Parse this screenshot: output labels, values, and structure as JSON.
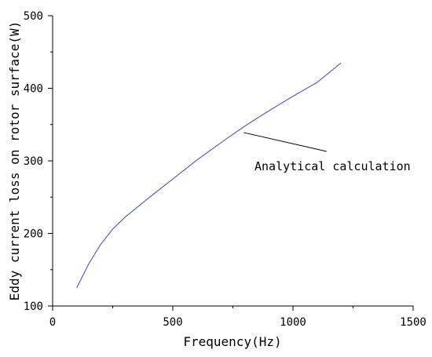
{
  "chart_data": {
    "type": "line",
    "title": "",
    "xlabel": "Frequency(Hz)",
    "ylabel": "Eddy current loss on rotor surface(W)",
    "xlim": [
      0,
      1500
    ],
    "ylim": [
      100,
      500
    ],
    "xticks": [
      0,
      500,
      1000,
      1500
    ],
    "yticks": [
      100,
      200,
      300,
      400,
      500
    ],
    "grid": false,
    "series": [
      {
        "color": "#4040d0",
        "x": [
          100,
          150,
          200,
          250,
          300,
          400,
          500,
          600,
          700,
          800,
          900,
          1000,
          1100,
          1200
        ],
        "y": [
          125,
          158,
          185,
          206,
          222,
          249,
          275,
          301,
          325,
          348,
          369,
          389,
          408,
          435
        ]
      }
    ],
    "annotations": [
      {
        "text": "Analytical calculation",
        "arrow_from": [
          1140,
          313
        ],
        "arrow_to": [
          795,
          339
        ]
      }
    ]
  }
}
